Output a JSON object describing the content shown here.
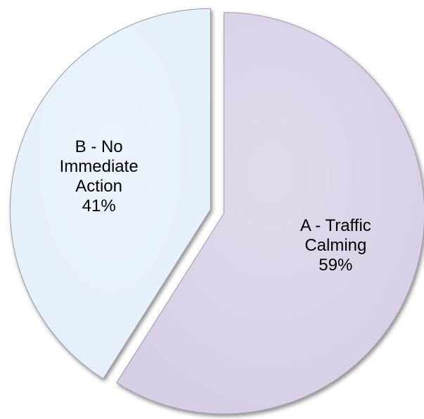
{
  "chart_data": {
    "type": "pie",
    "categories": [
      "A - Traffic Calming",
      "B - No Immediate Action"
    ],
    "values": [
      59,
      41
    ],
    "value_labels": [
      "59%",
      "41%"
    ],
    "colors": [
      "#d8cfe6",
      "#e5f0fb"
    ],
    "start_angle": -90,
    "direction": "clockwise",
    "exploded": true
  }
}
